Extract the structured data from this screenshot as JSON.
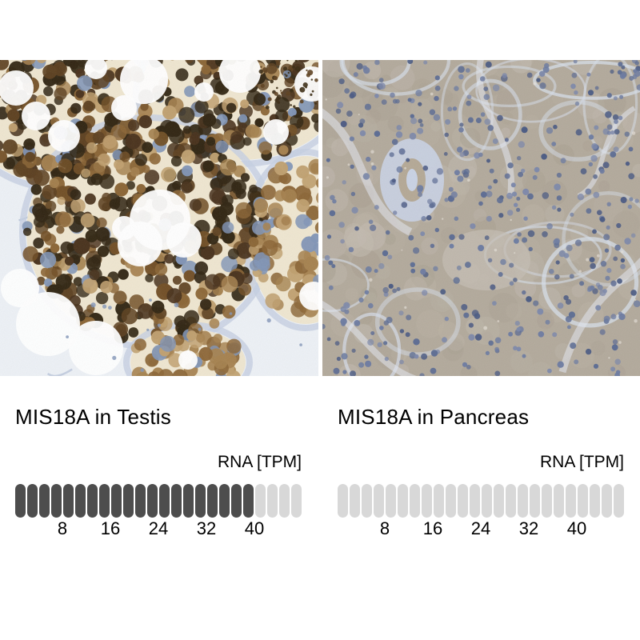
{
  "figure": {
    "background": "#ffffff",
    "source_kind": "protein expression comparison figure"
  },
  "colors": {
    "pill_filled": "#4d4d4d",
    "pill_empty": "#d8d8d8",
    "text": "#000000"
  },
  "panels": [
    {
      "title": "MIS18A in Testis",
      "rna_unit_label": "RNA [TPM]",
      "pills_total": 24,
      "pills_filled": 20,
      "ticks": [
        "8",
        "16",
        "24",
        "32",
        "40"
      ],
      "micrograph_description": "Immunohistochemistry micrograph of testis: seminiferous tubules packed with cells showing strong brown nuclear staining, pale blue-white stroma between tubules and white lumens",
      "micrograph_palette": {
        "stroma": "#edf1f6",
        "stroma_fiber": "#a9b8d2",
        "tubule_halo": "#c5d0e2",
        "tubule_base": "#efe6d0",
        "cell_browns": [
          "#2f2310",
          "#47301a",
          "#5c3f1e",
          "#714e24",
          "#8a6434",
          "#a5814e",
          "#bf9f6e"
        ],
        "nucleus_blue": "#8094b6",
        "lumen": "#ffffff",
        "speck": "#3a2a12"
      }
    },
    {
      "title": "MIS18A in Pancreas",
      "rna_unit_label": "RNA [TPM]",
      "pills_total": 24,
      "pills_filled": 0,
      "ticks": [
        "8",
        "16",
        "24",
        "32",
        "40"
      ],
      "micrograph_description": "Immunohistochemistry micrograph of pancreas: uniform grey-tan exocrine tissue with faint staining, scattered blue nuclei, pale blue septa and a small duct",
      "micrograph_palette": {
        "base": "#b2a99b",
        "mottle": [
          "#bab2a4",
          "#a89f90",
          "#c2bab0"
        ],
        "septa": "#d6deea",
        "septa_bright": "#e3e8f1",
        "nuclei": [
          "#495982",
          "#5a6a92",
          "#6b7aa0",
          "#7b87a9"
        ],
        "duct_halo": "#c9d2e4",
        "duct_wall": "#b4a895",
        "light_patch": "#c4beb3",
        "speck": "#e9e5dc"
      }
    }
  ],
  "chart_data": [
    {
      "type": "bar",
      "title": "MIS18A in Testis",
      "unit": "RNA [TPM]",
      "ticks": [
        8,
        16,
        24,
        32,
        40
      ],
      "axis_range": [
        0,
        48
      ],
      "tpm_per_segment": 2,
      "segments_total": 24,
      "segments_filled": 20,
      "value_estimate_tpm": 40,
      "filled_color": "#4d4d4d",
      "empty_color": "#d8d8d8",
      "legend_position": "none",
      "grid": false
    },
    {
      "type": "bar",
      "title": "MIS18A in Pancreas",
      "unit": "RNA [TPM]",
      "ticks": [
        8,
        16,
        24,
        32,
        40
      ],
      "axis_range": [
        0,
        48
      ],
      "tpm_per_segment": 2,
      "segments_total": 24,
      "segments_filled": 0,
      "value_estimate_tpm": 0,
      "filled_color": "#4d4d4d",
      "empty_color": "#d8d8d8",
      "legend_position": "none",
      "grid": false
    }
  ]
}
